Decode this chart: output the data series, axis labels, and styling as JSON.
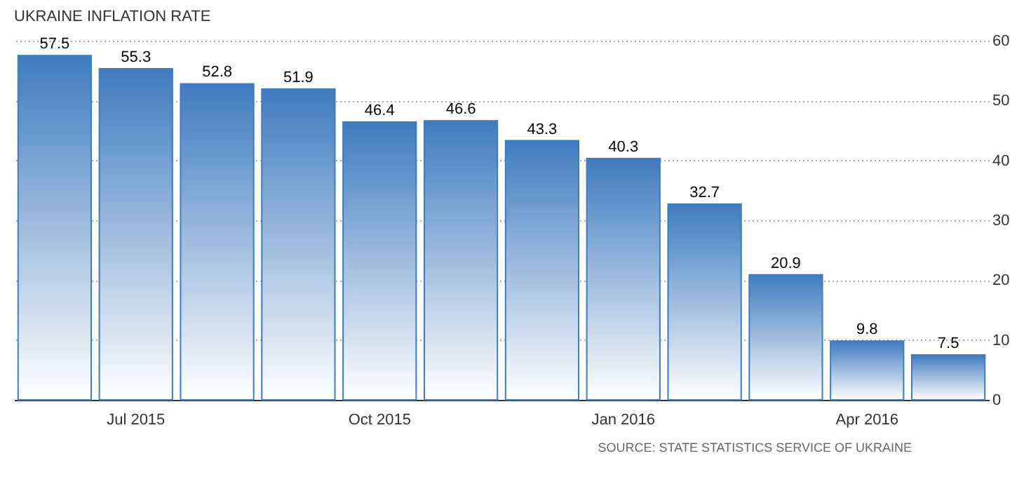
{
  "chart_data": {
    "type": "bar",
    "title": "UKRAINE INFLATION RATE",
    "categories": [
      null,
      "Jul 2015",
      null,
      null,
      "Oct 2015",
      null,
      null,
      "Jan 2016",
      null,
      null,
      "Apr 2016",
      null
    ],
    "values": [
      57.5,
      55.3,
      52.8,
      51.9,
      46.4,
      46.6,
      43.3,
      40.3,
      32.7,
      20.9,
      9.8,
      7.5
    ],
    "color": "#3f7bbf",
    "ylim": [
      0,
      60
    ],
    "yticks": [
      0,
      10,
      20,
      30,
      40,
      50,
      60
    ],
    "grid": "y",
    "data_labels": true,
    "annotations": [
      "SOURCE: STATE STATISTICS SERVICE OF UKRAINE"
    ]
  }
}
